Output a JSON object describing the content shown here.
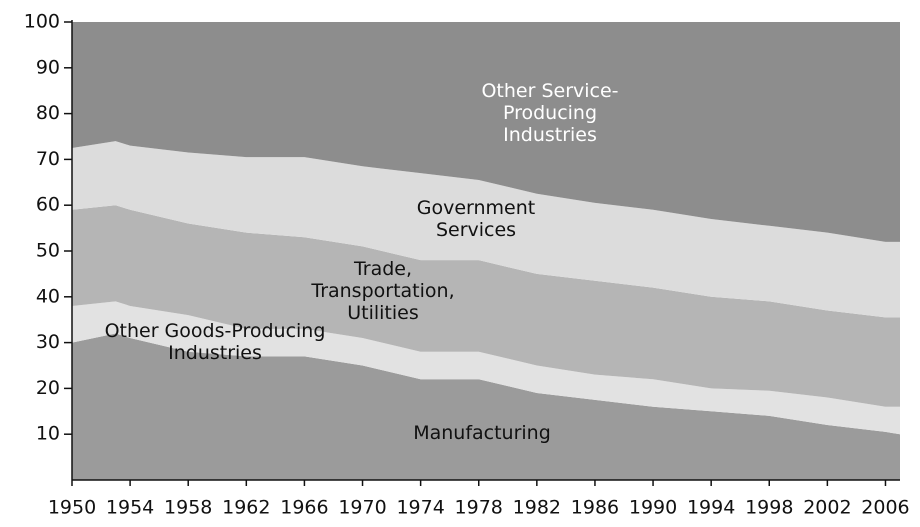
{
  "chart_data": {
    "type": "stacked_area",
    "x": [
      1950,
      1953,
      1954,
      1958,
      1962,
      1966,
      1970,
      1974,
      1978,
      1982,
      1986,
      1990,
      1994,
      1998,
      2002,
      2006,
      2007
    ],
    "xlim": [
      1950,
      2007
    ],
    "xticks": [
      1950,
      1954,
      1958,
      1962,
      1966,
      1970,
      1974,
      1978,
      1982,
      1986,
      1990,
      1994,
      1998,
      2002,
      2006
    ],
    "ylim": [
      0,
      100
    ],
    "yticks": [
      10,
      20,
      30,
      40,
      50,
      60,
      70,
      80,
      90,
      100
    ],
    "grid": false,
    "series": [
      {
        "name": "Manufacturing",
        "color": "#9b9b9b",
        "values": [
          30,
          32,
          31,
          28,
          27,
          27,
          25,
          22,
          22,
          19,
          17.5,
          16,
          15,
          14,
          12,
          10.5,
          10
        ]
      },
      {
        "name": "Other Goods-Producing Industries",
        "color": "#e2e2e2",
        "values": [
          8,
          7,
          7,
          8,
          6,
          6,
          6,
          6,
          6,
          6,
          5.5,
          6,
          5,
          5.5,
          6,
          5.5,
          6
        ]
      },
      {
        "name": "Trade, Transportation, Utilities",
        "color": "#b5b5b5",
        "values": [
          21,
          21,
          21,
          20,
          21,
          20,
          20,
          20,
          20,
          20,
          20.5,
          20,
          20,
          19.5,
          19,
          19.5,
          19.5
        ]
      },
      {
        "name": "Government Services",
        "color": "#dcdcdc",
        "values": [
          13.5,
          14,
          14,
          15.5,
          16.5,
          17.5,
          17.5,
          19,
          17.5,
          17.5,
          17,
          17,
          17,
          16.5,
          17,
          16.5,
          16.5
        ]
      },
      {
        "name": "Other Service-Producing Industries",
        "color": "#8d8d8d",
        "values": [
          27.5,
          26,
          27,
          28.5,
          29.5,
          29.5,
          31.5,
          33,
          34.5,
          37.5,
          39.5,
          41,
          43,
          44.5,
          46,
          48,
          48
        ]
      }
    ]
  }
}
